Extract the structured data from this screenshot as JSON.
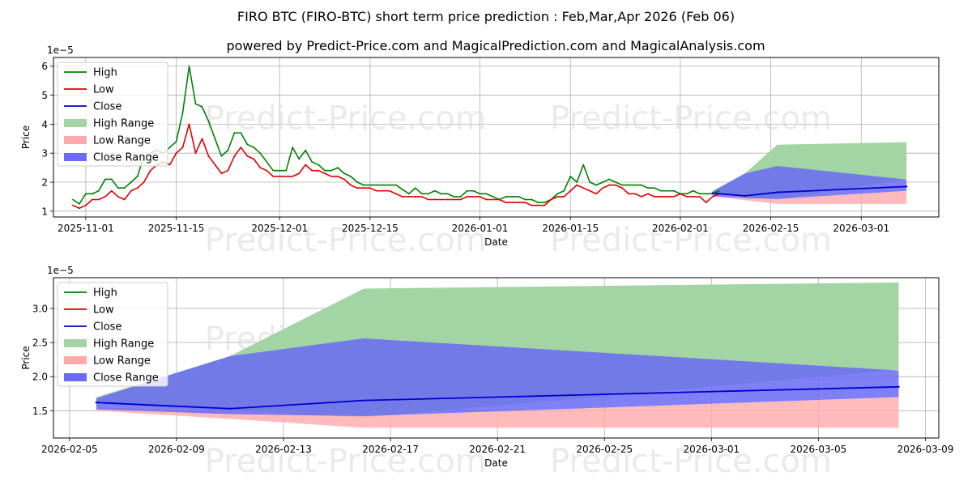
{
  "figure": {
    "title": "FIRO BTC (FIRO-BTC) short term price prediction : Feb,Mar,Apr 2026 (Feb 06)",
    "subtitle": "powered by Predict-Price.com and MagicalPrediction.com and MagicalAnalysis.com",
    "watermark": "Predict-Price.com"
  },
  "colors": {
    "high": "#008000",
    "low": "#e00000",
    "close": "#0000cc",
    "high_range": "#a3d4a3",
    "low_range": "#ffaaaa",
    "close_range": "#6a6af5",
    "grid": "#b0b0b0",
    "watermark": "#dddddd"
  },
  "chart_data": [
    {
      "id": "history",
      "type": "line",
      "xlabel": "Date",
      "ylabel": "Price",
      "exponent_label": "1e−5",
      "xlim": [
        "2025-10-27",
        "2026-03-13"
      ],
      "ylim": [
        0.8,
        6.3
      ],
      "yticks": [
        1,
        2,
        3,
        4,
        5,
        6
      ],
      "xticks": [
        {
          "date": "2025-11-01",
          "label": "2025-11-01"
        },
        {
          "date": "2025-11-15",
          "label": "2025-11-15"
        },
        {
          "date": "2025-12-01",
          "label": "2025-12-01"
        },
        {
          "date": "2025-12-15",
          "label": "2025-12-15"
        },
        {
          "date": "2026-01-01",
          "label": "2026-01-01"
        },
        {
          "date": "2026-01-15",
          "label": "2026-01-15"
        },
        {
          "date": "2026-02-01",
          "label": "2026-02-01"
        },
        {
          "date": "2026-02-15",
          "label": "2026-02-15"
        },
        {
          "date": "2026-03-01",
          "label": "2026-03-01"
        }
      ],
      "history_start": "2025-10-30",
      "high_values": [
        1.4,
        1.25,
        1.6,
        1.6,
        1.7,
        2.1,
        2.1,
        1.8,
        1.8,
        2.0,
        2.2,
        2.9,
        3.0,
        3.1,
        3.0,
        3.2,
        3.4,
        4.4,
        6.0,
        4.7,
        4.6,
        4.1,
        3.5,
        2.9,
        3.1,
        3.7,
        3.7,
        3.3,
        3.2,
        3.0,
        2.7,
        2.4,
        2.4,
        2.4,
        3.2,
        2.8,
        3.1,
        2.7,
        2.6,
        2.4,
        2.4,
        2.5,
        2.3,
        2.2,
        2.0,
        1.9,
        1.9,
        1.9,
        1.9,
        1.9,
        1.9,
        1.75,
        1.6,
        1.8,
        1.6,
        1.6,
        1.7,
        1.6,
        1.6,
        1.5,
        1.5,
        1.7,
        1.7,
        1.6,
        1.6,
        1.5,
        1.4,
        1.5,
        1.5,
        1.5,
        1.4,
        1.4,
        1.3,
        1.3,
        1.4,
        1.6,
        1.7,
        2.2,
        2.0,
        2.6,
        2.0,
        1.9,
        2.0,
        2.1,
        2.0,
        1.9,
        1.9,
        1.9,
        1.9,
        1.8,
        1.8,
        1.7,
        1.7,
        1.7,
        1.6,
        1.6,
        1.7,
        1.6,
        1.6,
        1.6,
        1.7
      ],
      "low_values": [
        1.2,
        1.1,
        1.2,
        1.4,
        1.4,
        1.5,
        1.7,
        1.5,
        1.4,
        1.7,
        1.8,
        2.0,
        2.4,
        2.6,
        2.7,
        2.6,
        3.0,
        3.2,
        4.0,
        3.0,
        3.5,
        2.9,
        2.6,
        2.3,
        2.4,
        2.9,
        3.2,
        2.9,
        2.8,
        2.5,
        2.4,
        2.2,
        2.2,
        2.2,
        2.2,
        2.3,
        2.6,
        2.4,
        2.4,
        2.3,
        2.2,
        2.2,
        2.1,
        1.9,
        1.8,
        1.8,
        1.8,
        1.7,
        1.7,
        1.7,
        1.6,
        1.5,
        1.5,
        1.5,
        1.5,
        1.4,
        1.4,
        1.4,
        1.4,
        1.4,
        1.4,
        1.5,
        1.5,
        1.5,
        1.4,
        1.4,
        1.4,
        1.3,
        1.3,
        1.3,
        1.3,
        1.2,
        1.2,
        1.2,
        1.4,
        1.5,
        1.5,
        1.7,
        1.9,
        1.8,
        1.7,
        1.6,
        1.8,
        1.9,
        1.9,
        1.8,
        1.6,
        1.6,
        1.5,
        1.6,
        1.5,
        1.5,
        1.5,
        1.5,
        1.6,
        1.5,
        1.5,
        1.5,
        1.3,
        1.5,
        1.6
      ]
    },
    {
      "id": "forecast",
      "type": "area",
      "xlabel": "Date",
      "ylabel": "Price",
      "exponent_label": "1e−5",
      "xlim": [
        "2026-02-04.4",
        "2026-03-09.5"
      ],
      "ylim": [
        1.1,
        3.45
      ],
      "yticks": [
        {
          "value": 1.5,
          "label": "1.5"
        },
        {
          "value": 2.0,
          "label": "2.0"
        },
        {
          "value": 2.5,
          "label": "2.5"
        },
        {
          "value": 3.0,
          "label": "3.0"
        }
      ],
      "xticks": [
        {
          "date": "2026-02-05",
          "label": "2026-02-05"
        },
        {
          "date": "2026-02-09",
          "label": "2026-02-09"
        },
        {
          "date": "2026-02-13",
          "label": "2026-02-13"
        },
        {
          "date": "2026-02-17",
          "label": "2026-02-17"
        },
        {
          "date": "2026-02-21",
          "label": "2026-02-21"
        },
        {
          "date": "2026-02-25",
          "label": "2026-02-25"
        },
        {
          "date": "2026-03-01",
          "label": "2026-03-01"
        },
        {
          "date": "2026-03-05",
          "label": "2026-03-05"
        },
        {
          "date": "2026-03-09",
          "label": "2026-03-09"
        }
      ],
      "x": [
        "2026-02-06",
        "2026-02-11",
        "2026-02-16",
        "2026-03-08"
      ],
      "high_range": {
        "upper": [
          1.7,
          2.3,
          3.29,
          3.38
        ],
        "lower": [
          1.6,
          1.5,
          1.4,
          2.1
        ]
      },
      "low_range": {
        "upper": [
          1.55,
          1.48,
          1.42,
          1.7
        ],
        "lower": [
          1.5,
          1.38,
          1.25,
          1.25
        ]
      },
      "close_range": {
        "upper": [
          1.68,
          2.3,
          2.56,
          2.09
        ],
        "lower": [
          1.52,
          1.45,
          1.42,
          1.7
        ]
      },
      "close": [
        1.62,
        1.53,
        1.65,
        1.85
      ]
    }
  ],
  "legend": {
    "position": "upper-left",
    "items": [
      {
        "label": "High",
        "kind": "line",
        "color_key": "high"
      },
      {
        "label": "Low",
        "kind": "line",
        "color_key": "low"
      },
      {
        "label": "Close",
        "kind": "line",
        "color_key": "close"
      },
      {
        "label": "High Range",
        "kind": "patch",
        "color_key": "high_range"
      },
      {
        "label": "Low Range",
        "kind": "patch",
        "color_key": "low_range"
      },
      {
        "label": "Close Range",
        "kind": "patch",
        "color_key": "close_range"
      }
    ]
  }
}
